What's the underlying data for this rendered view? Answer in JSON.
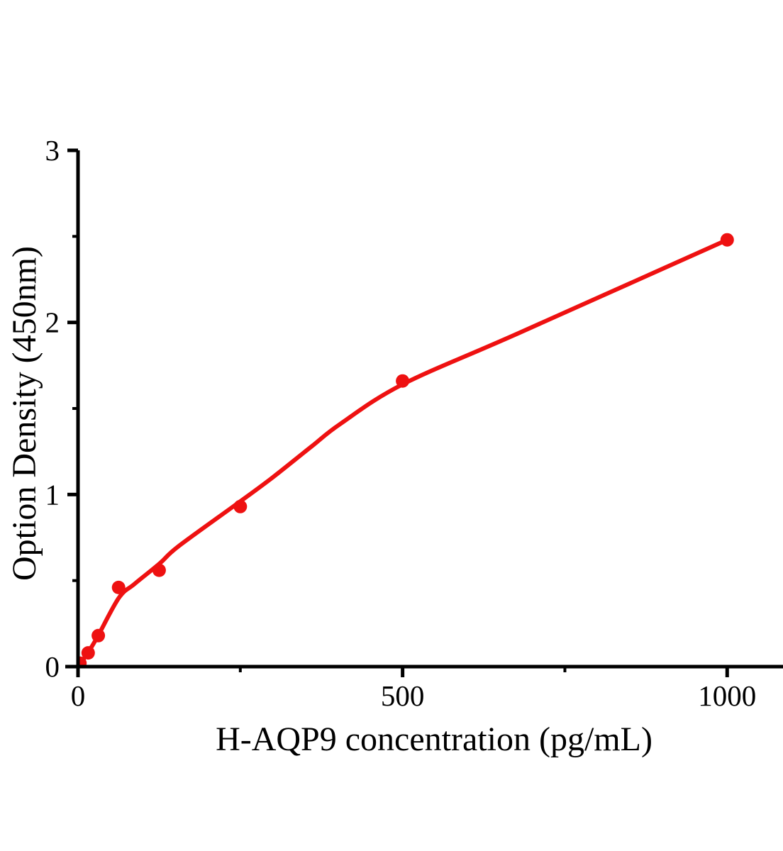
{
  "page": {
    "background": "#ffffff"
  },
  "chart_data": {
    "type": "scatter",
    "title": "",
    "grid": false,
    "legend": "none",
    "colors": {
      "data": "#ee1111",
      "axis": "#000000",
      "background": "#ffffff"
    },
    "x_axis": {
      "label": "H-AQP9 concentration (pg/mL)",
      "range": [
        0,
        1086
      ],
      "major_ticks": [
        {
          "value": 0,
          "label": "0"
        },
        {
          "value": 500,
          "label": "500"
        },
        {
          "value": 1000,
          "label": "1000"
        }
      ],
      "minor_ticks": [
        250,
        750
      ]
    },
    "y_axis": {
      "label": "Option Density (450nm)",
      "range": [
        0,
        3
      ],
      "major_ticks": [
        {
          "value": 0,
          "label": "0"
        },
        {
          "value": 1,
          "label": "1"
        },
        {
          "value": 2,
          "label": "2"
        },
        {
          "value": 3,
          "label": "3"
        }
      ],
      "minor_ticks": [
        0.5,
        1.5,
        2.5
      ]
    },
    "series": [
      {
        "name": "standard-points",
        "type": "scatter",
        "marker_radius": 9.5,
        "points": [
          [
            3,
            0.02
          ],
          [
            15.6,
            0.08
          ],
          [
            31.2,
            0.18
          ],
          [
            62.5,
            0.46
          ],
          [
            125,
            0.56
          ],
          [
            250,
            0.93
          ],
          [
            500,
            1.66
          ],
          [
            1000,
            2.48
          ]
        ]
      },
      {
        "name": "fitted-curve",
        "type": "line",
        "stroke_width": 6,
        "points": [
          [
            0,
            0
          ],
          [
            16,
            0.085
          ],
          [
            31,
            0.18
          ],
          [
            63,
            0.4
          ],
          [
            87,
            0.48
          ],
          [
            126,
            0.6
          ],
          [
            155,
            0.7
          ],
          [
            250,
            0.96
          ],
          [
            300,
            1.1
          ],
          [
            360,
            1.28
          ],
          [
            404,
            1.41
          ],
          [
            500,
            1.64
          ],
          [
            680,
            1.94
          ],
          [
            1000,
            2.48
          ]
        ]
      }
    ]
  }
}
